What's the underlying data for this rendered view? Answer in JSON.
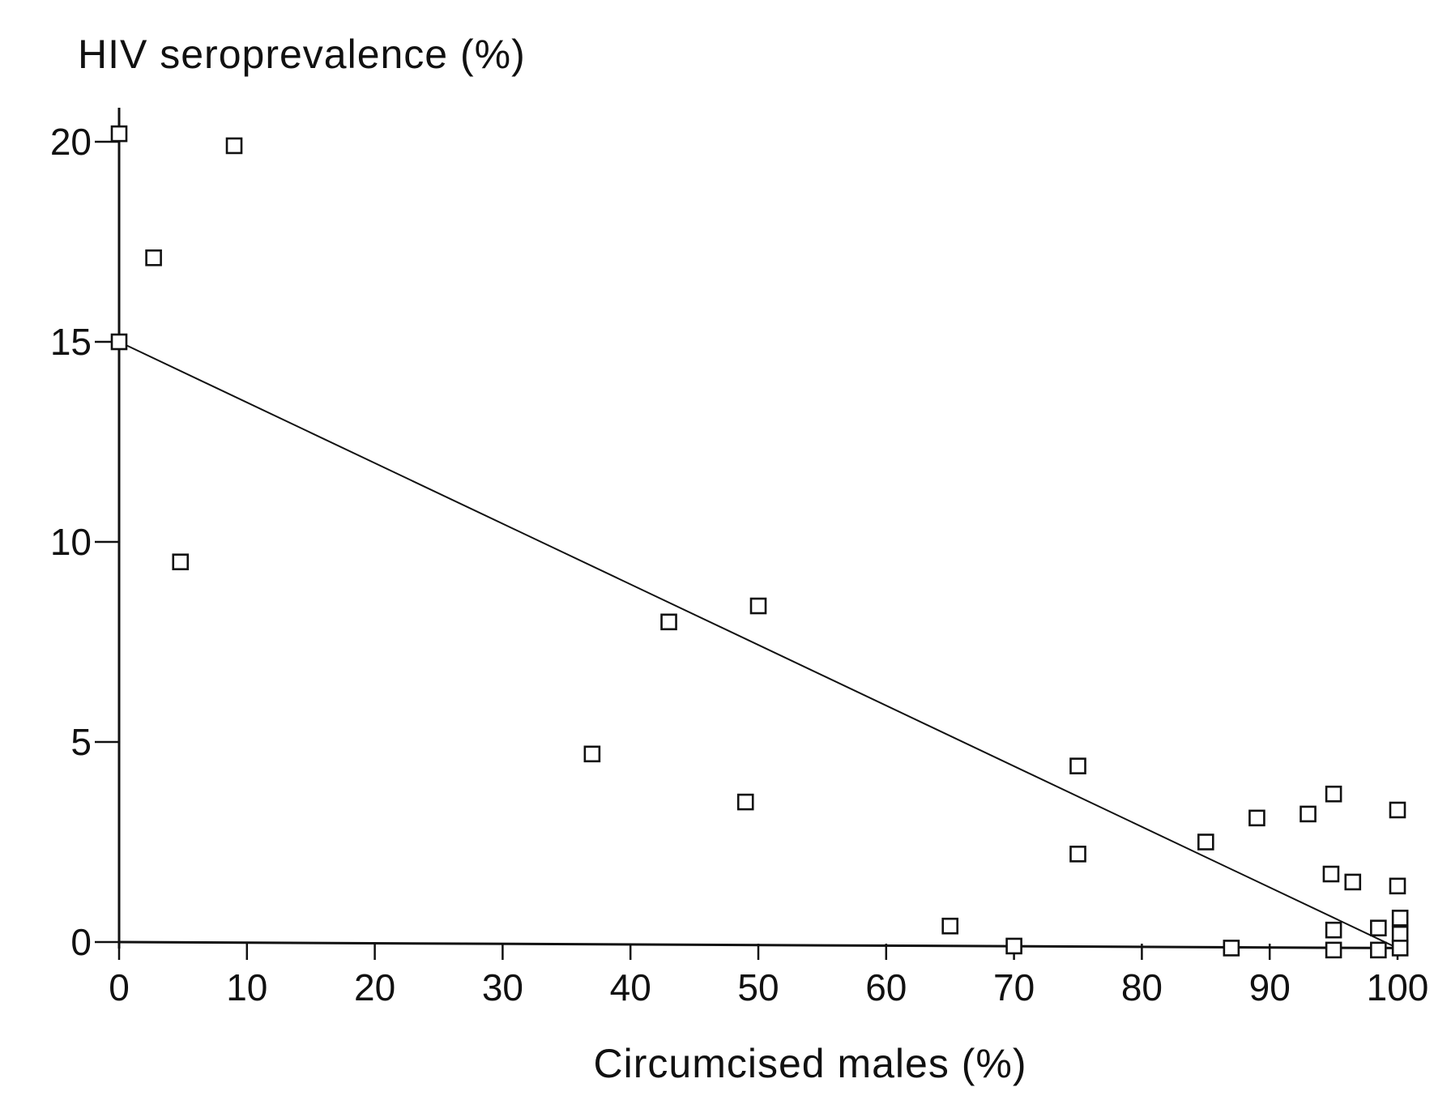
{
  "chart_data": {
    "type": "scatter",
    "ylabel": "HIV seroprevalence (%)",
    "xlabel": "Circumcised males (%)",
    "xlim": [
      0,
      100
    ],
    "ylim": [
      0,
      20
    ],
    "x_ticks": [
      0,
      10,
      20,
      30,
      40,
      50,
      60,
      70,
      80,
      90,
      100
    ],
    "y_ticks": [
      0,
      5,
      10,
      15,
      20
    ],
    "grid": false,
    "points": [
      {
        "x": 0,
        "y": 20.2
      },
      {
        "x": 9,
        "y": 19.9
      },
      {
        "x": 2.7,
        "y": 17.1
      },
      {
        "x": 0,
        "y": 15.0
      },
      {
        "x": 4.8,
        "y": 9.5
      },
      {
        "x": 43,
        "y": 8.0
      },
      {
        "x": 50,
        "y": 8.4
      },
      {
        "x": 37,
        "y": 4.7
      },
      {
        "x": 49,
        "y": 3.5
      },
      {
        "x": 75,
        "y": 4.4
      },
      {
        "x": 75,
        "y": 2.2
      },
      {
        "x": 65,
        "y": 0.4
      },
      {
        "x": 70,
        "y": -0.1
      },
      {
        "x": 85,
        "y": 2.5
      },
      {
        "x": 87,
        "y": -0.15
      },
      {
        "x": 89,
        "y": 3.1
      },
      {
        "x": 93,
        "y": 3.2
      },
      {
        "x": 95,
        "y": 3.7
      },
      {
        "x": 94.8,
        "y": 1.7
      },
      {
        "x": 96.5,
        "y": 1.5
      },
      {
        "x": 95,
        "y": 0.3
      },
      {
        "x": 95,
        "y": -0.2
      },
      {
        "x": 98.5,
        "y": 0.35
      },
      {
        "x": 98.5,
        "y": -0.2
      },
      {
        "x": 100,
        "y": 3.3
      },
      {
        "x": 100,
        "y": 1.4
      },
      {
        "x": 100.2,
        "y": 0.6
      },
      {
        "x": 100.2,
        "y": 0.2
      },
      {
        "x": 100.2,
        "y": -0.15
      }
    ],
    "trend_line": {
      "x": [
        0,
        100
      ],
      "y": [
        15.0,
        -0.15
      ]
    },
    "baseline": {
      "x": [
        0,
        100
      ],
      "y": [
        0,
        -0.15
      ]
    }
  }
}
